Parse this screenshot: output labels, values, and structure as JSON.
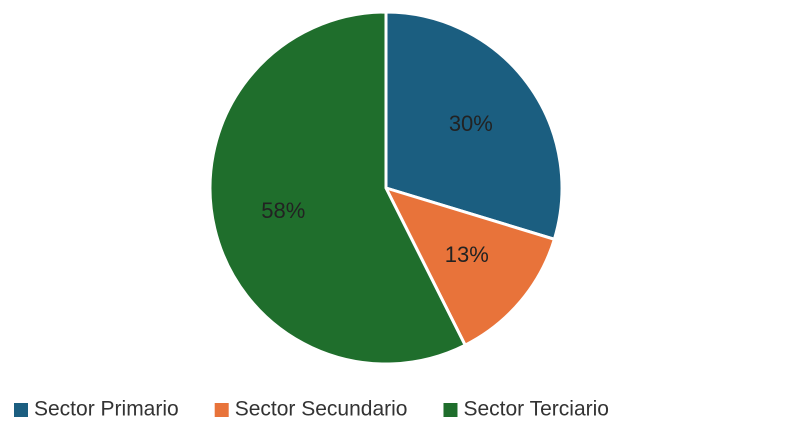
{
  "chart_data": {
    "type": "pie",
    "categories": [
      "Sector Primario",
      "Sector Secundario",
      "Sector Terciario"
    ],
    "values": [
      30,
      13,
      58
    ],
    "value_labels": [
      "30%",
      "13%",
      "58%"
    ],
    "colors": [
      "#1b5e80",
      "#e8733a",
      "#1f6e2c"
    ],
    "legend": "bottom"
  }
}
